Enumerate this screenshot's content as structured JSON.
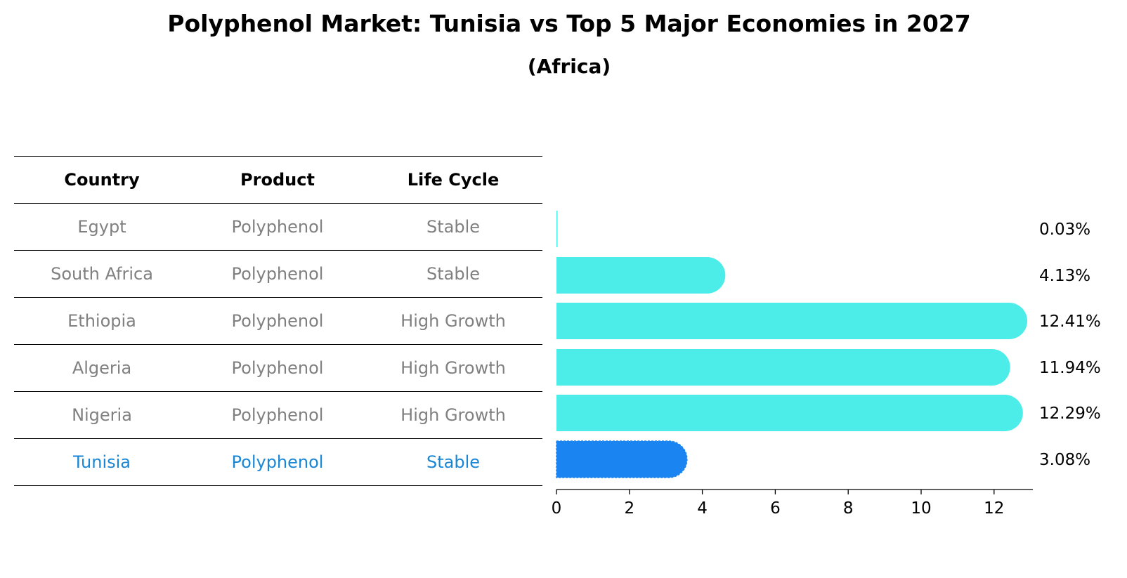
{
  "chart_data": {
    "type": "bar",
    "orientation": "horizontal",
    "title": "Polyphenol Market: Tunisia vs Top 5 Major Economies in 2027",
    "subtitle": "(Africa)",
    "table": {
      "columns": [
        "Country",
        "Product",
        "Life Cycle"
      ],
      "rows": [
        {
          "country": "Egypt",
          "product": "Polyphenol",
          "life_cycle": "Stable"
        },
        {
          "country": "South Africa",
          "product": "Polyphenol",
          "life_cycle": "Stable"
        },
        {
          "country": "Ethiopia",
          "product": "Polyphenol",
          "life_cycle": "High Growth"
        },
        {
          "country": "Algeria",
          "product": "Polyphenol",
          "life_cycle": "High Growth"
        },
        {
          "country": "Nigeria",
          "product": "Polyphenol",
          "life_cycle": "High Growth"
        },
        {
          "country": "Tunisia",
          "product": "Polyphenol",
          "life_cycle": "Stable"
        }
      ]
    },
    "categories": [
      "Egypt",
      "South Africa",
      "Ethiopia",
      "Algeria",
      "Nigeria",
      "Tunisia"
    ],
    "values": [
      0.03,
      4.13,
      12.41,
      11.94,
      12.29,
      3.08
    ],
    "value_labels": [
      "0.03%",
      "4.13%",
      "12.41%",
      "11.94%",
      "12.29%",
      "3.08%"
    ],
    "highlight": "Tunisia",
    "xlim": [
      0,
      13
    ],
    "xticks": [
      0,
      2,
      4,
      6,
      8,
      10,
      12
    ],
    "colors": {
      "bar": "#4cede9",
      "highlight_bar": "#1a84f0",
      "highlight_text": "#1a86d4",
      "text_muted": "#808080"
    }
  }
}
